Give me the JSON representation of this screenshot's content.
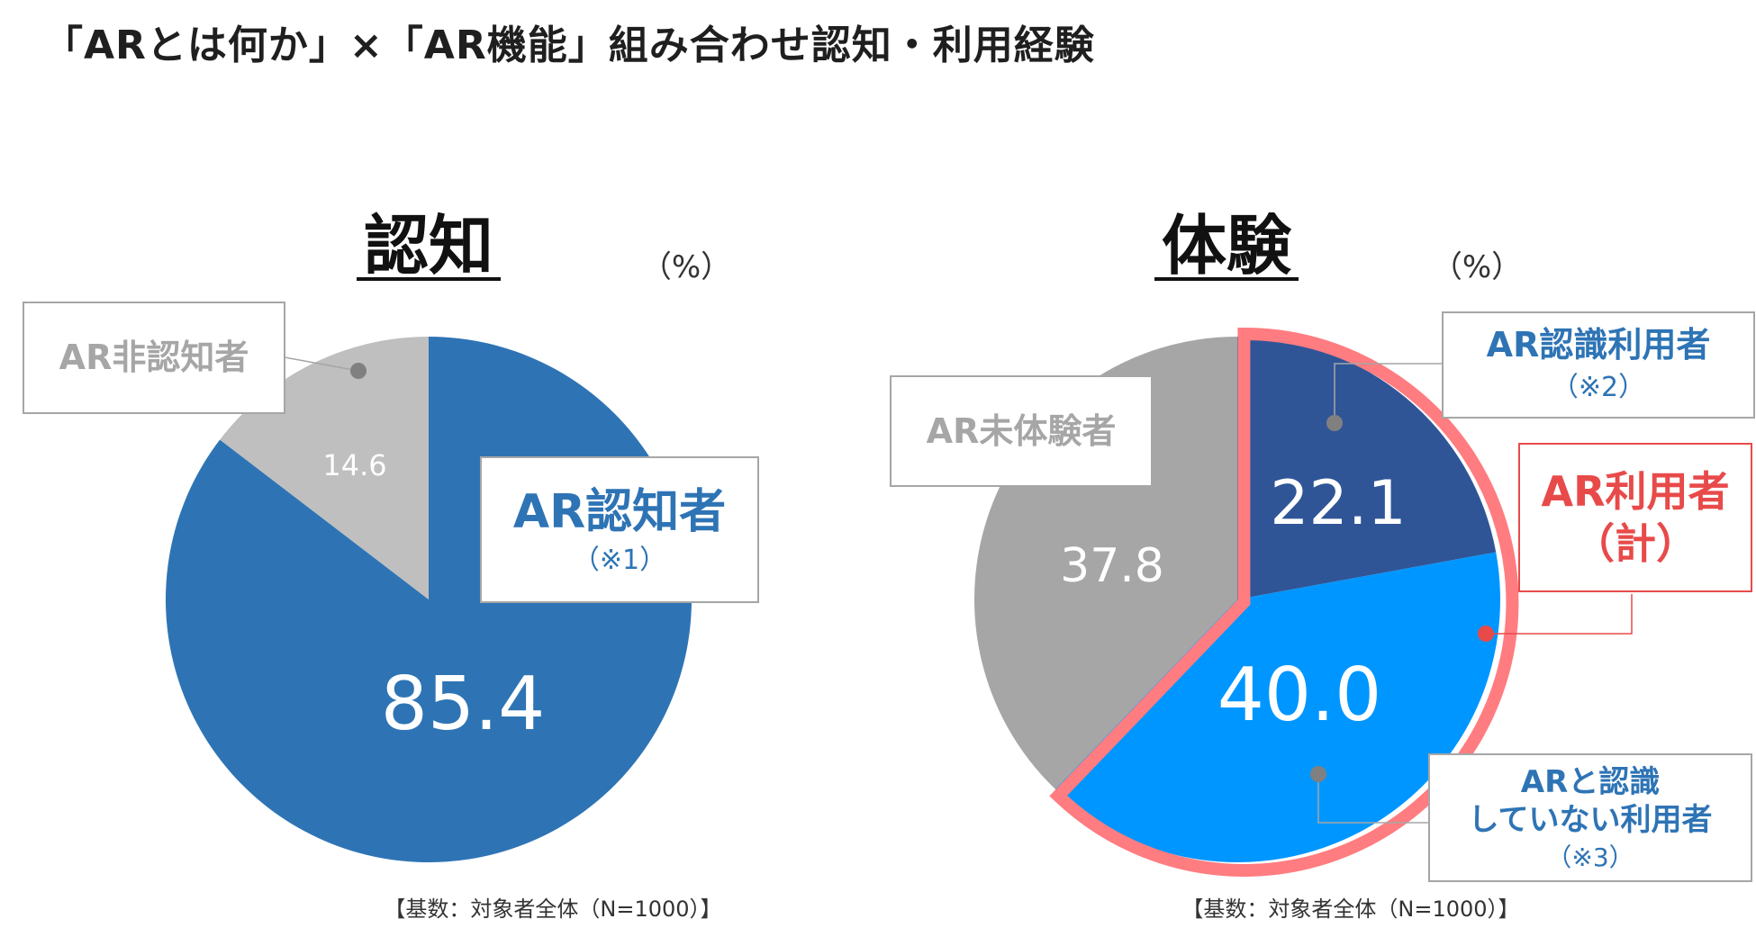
{
  "page_title": "「ARとは何か」×「AR機能」組み合わせ認知・利用経験",
  "colors": {
    "aware": "#2e74b5",
    "unaware": "#bfbfbf",
    "aware_user": "#2f5597",
    "unaware_user": "#0096ff",
    "non_user": "#a6a6a6",
    "highlight": "#ff7c80",
    "total_label": "#e84a4a",
    "label_text": "#2e74b5",
    "muted_label": "#a6a6a6"
  },
  "chart_data": [
    {
      "type": "pie",
      "title": "認知",
      "unit": "（%）",
      "base_note": "【基数：対象者全体（N=1000）】",
      "slices": [
        {
          "name": "AR認知者",
          "note": "（※1）",
          "value": 85.4,
          "label": "85.4"
        },
        {
          "name": "AR非認知者",
          "note": "",
          "value": 14.6,
          "label": "14.6"
        }
      ]
    },
    {
      "type": "pie",
      "title": "体験",
      "unit": "（%）",
      "base_note": "【基数：対象者全体（N=1000）】",
      "slices": [
        {
          "name": "AR認識利用者",
          "note": "（※2）",
          "value": 22.1,
          "label": "22.1"
        },
        {
          "name": "ARと認識 していない利用者",
          "name_lines": [
            "ARと認識",
            "していない利用者"
          ],
          "note": "（※3）",
          "value": 40.0,
          "label": "40.0"
        },
        {
          "name": "AR未体験者",
          "note": "",
          "value": 37.8,
          "label": "37.8"
        }
      ],
      "group_label": {
        "lines": [
          "AR利用者",
          "（計）"
        ]
      }
    }
  ]
}
